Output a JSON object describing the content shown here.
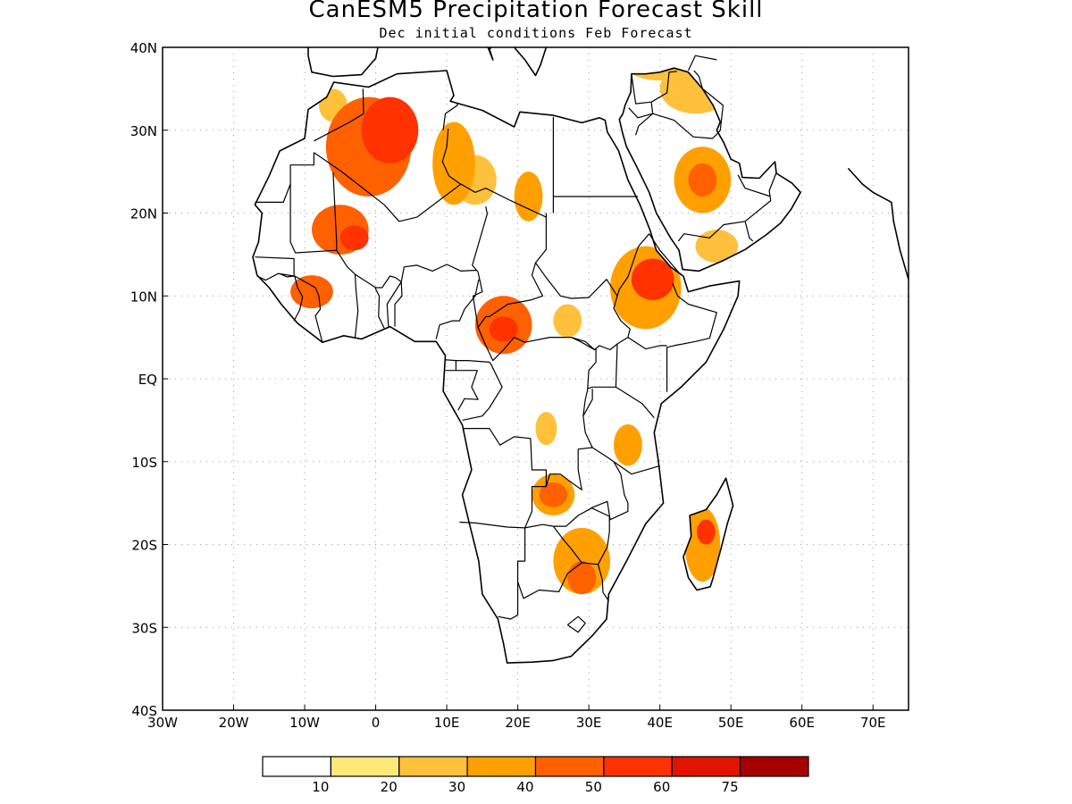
{
  "title": "CanESM5 Precipitation Forecast Skill",
  "subtitle": "Dec initial conditions  Feb Forecast",
  "map": {
    "lon_range": [
      -30,
      75
    ],
    "lat_range": [
      -40,
      40
    ],
    "lon_ticks": [
      {
        "value": -30,
        "label": "30W"
      },
      {
        "value": -20,
        "label": "20W"
      },
      {
        "value": -10,
        "label": "10W"
      },
      {
        "value": 0,
        "label": "0"
      },
      {
        "value": 10,
        "label": "10E"
      },
      {
        "value": 20,
        "label": "20E"
      },
      {
        "value": 30,
        "label": "30E"
      },
      {
        "value": 40,
        "label": "40E"
      },
      {
        "value": 50,
        "label": "50E"
      },
      {
        "value": 60,
        "label": "60E"
      },
      {
        "value": 70,
        "label": "70E"
      }
    ],
    "lat_ticks": [
      {
        "value": 40,
        "label": "40N"
      },
      {
        "value": 30,
        "label": "30N"
      },
      {
        "value": 20,
        "label": "20N"
      },
      {
        "value": 10,
        "label": "10N"
      },
      {
        "value": 0,
        "label": "EQ"
      },
      {
        "value": -10,
        "label": "10S"
      },
      {
        "value": -20,
        "label": "20S"
      },
      {
        "value": -30,
        "label": "30S"
      },
      {
        "value": -40,
        "label": "40S"
      }
    ],
    "grid": "dotted",
    "skill_regions": [
      {
        "lon": -1,
        "lat": 28,
        "rlon": 6,
        "rlat": 6,
        "level": 4
      },
      {
        "lon": 2,
        "lat": 30,
        "rlon": 4,
        "rlat": 4,
        "level": 5
      },
      {
        "lon": 11,
        "lat": 26,
        "rlon": 3,
        "rlat": 5,
        "level": 3
      },
      {
        "lon": -5,
        "lat": 18,
        "rlon": 4,
        "rlat": 3,
        "level": 4
      },
      {
        "lon": -3,
        "lat": 17,
        "rlon": 2,
        "rlat": 1.5,
        "level": 5
      },
      {
        "lon": -9,
        "lat": 10.5,
        "rlon": 3,
        "rlat": 2,
        "level": 4
      },
      {
        "lon": 21.5,
        "lat": 22,
        "rlon": 2,
        "rlat": 3,
        "level": 3
      },
      {
        "lon": 18,
        "lat": 6.5,
        "rlon": 4,
        "rlat": 3.5,
        "level": 4
      },
      {
        "lon": 18,
        "lat": 6,
        "rlon": 2,
        "rlat": 1.5,
        "level": 5
      },
      {
        "lon": 27,
        "lat": 7,
        "rlon": 2,
        "rlat": 2,
        "level": 2
      },
      {
        "lon": 38,
        "lat": 11,
        "rlon": 5,
        "rlat": 5,
        "level": 3
      },
      {
        "lon": 39,
        "lat": 12,
        "rlon": 3,
        "rlat": 2.5,
        "level": 5
      },
      {
        "lon": 46,
        "lat": 24,
        "rlon": 4,
        "rlat": 4,
        "level": 3
      },
      {
        "lon": 46,
        "lat": 24,
        "rlon": 2,
        "rlat": 2,
        "level": 4
      },
      {
        "lon": 48,
        "lat": 16,
        "rlon": 3,
        "rlat": 2,
        "level": 2
      },
      {
        "lon": 45,
        "lat": 35,
        "rlon": 5,
        "rlat": 3,
        "level": 2
      },
      {
        "lon": 40,
        "lat": 38,
        "rlon": 5,
        "rlat": 2,
        "level": 2
      },
      {
        "lon": 24,
        "lat": -6,
        "rlon": 1.5,
        "rlat": 2,
        "level": 2
      },
      {
        "lon": 25,
        "lat": -14,
        "rlon": 3,
        "rlat": 2.5,
        "level": 3
      },
      {
        "lon": 25,
        "lat": -14,
        "rlon": 2,
        "rlat": 1.5,
        "level": 4
      },
      {
        "lon": 29,
        "lat": -22,
        "rlon": 4,
        "rlat": 4,
        "level": 3
      },
      {
        "lon": 29,
        "lat": -24,
        "rlon": 2,
        "rlat": 2,
        "level": 4
      },
      {
        "lon": 35.5,
        "lat": -8,
        "rlon": 2,
        "rlat": 2.5,
        "level": 3
      },
      {
        "lon": 46,
        "lat": -20,
        "rlon": 2.5,
        "rlat": 4.5,
        "level": 3
      },
      {
        "lon": 46.5,
        "lat": -18.5,
        "rlon": 1.3,
        "rlat": 1.5,
        "level": 5
      },
      {
        "lon": 14,
        "lat": 24,
        "rlon": 3,
        "rlat": 3,
        "level": 2
      },
      {
        "lon": -6,
        "lat": 33,
        "rlon": 2,
        "rlat": 2,
        "level": 2
      },
      {
        "lon": 50,
        "lat": 0,
        "rlon": 1,
        "rlat": 1,
        "level": 0
      }
    ]
  },
  "colorbar": {
    "colors": [
      "#ffffff",
      "#ffe878",
      "#ffc03c",
      "#ffa000",
      "#ff6000",
      "#ff3200",
      "#e11400",
      "#a50000"
    ],
    "labels": [
      "10",
      "20",
      "30",
      "40",
      "50",
      "60",
      "75"
    ]
  }
}
